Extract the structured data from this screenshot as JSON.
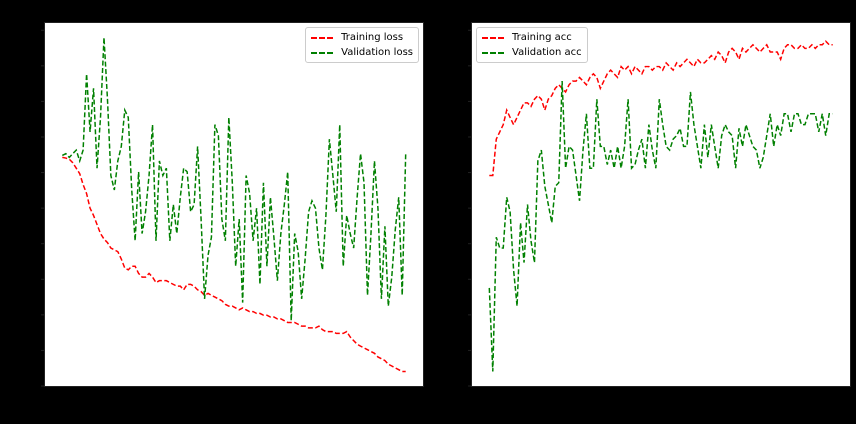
{
  "chart_data": [
    {
      "type": "line",
      "title": "",
      "xlabel": "",
      "ylabel": "",
      "note": "Tick labels are rendered black-on-black and not legible; y values are normalized to axis height (0 = bottom, 1 = top), x = epoch index 1..100.",
      "ylim": [
        0,
        1
      ],
      "xlim": [
        -4,
        105
      ],
      "grid": false,
      "legend_position": "upper right",
      "series": [
        {
          "name": "Training loss",
          "color": "#ff0000",
          "style": "dashed",
          "values": [
            0.63,
            0.628,
            0.625,
            0.615,
            0.6,
            0.585,
            0.555,
            0.53,
            0.49,
            0.47,
            0.445,
            0.42,
            0.405,
            0.395,
            0.38,
            0.375,
            0.37,
            0.35,
            0.325,
            0.32,
            0.33,
            0.33,
            0.31,
            0.3,
            0.3,
            0.31,
            0.3,
            0.285,
            0.29,
            0.29,
            0.29,
            0.285,
            0.28,
            0.275,
            0.275,
            0.265,
            0.28,
            0.28,
            0.275,
            0.265,
            0.26,
            0.25,
            0.255,
            0.25,
            0.245,
            0.24,
            0.235,
            0.225,
            0.22,
            0.22,
            0.215,
            0.21,
            0.215,
            0.21,
            0.205,
            0.205,
            0.2,
            0.2,
            0.195,
            0.195,
            0.19,
            0.19,
            0.185,
            0.185,
            0.18,
            0.175,
            0.175,
            0.175,
            0.17,
            0.165,
            0.165,
            0.16,
            0.16,
            0.16,
            0.165,
            0.155,
            0.15,
            0.15,
            0.15,
            0.145,
            0.145,
            0.145,
            0.15,
            0.135,
            0.125,
            0.115,
            0.11,
            0.105,
            0.1,
            0.095,
            0.09,
            0.08,
            0.075,
            0.07,
            0.06,
            0.055,
            0.05,
            0.045,
            0.04,
            0.04
          ]
        },
        {
          "name": "Validation loss",
          "color": "#008000",
          "style": "dashed",
          "values": [
            0.635,
            0.64,
            0.63,
            0.64,
            0.65,
            0.62,
            0.65,
            0.86,
            0.7,
            0.82,
            0.6,
            0.74,
            0.96,
            0.79,
            0.58,
            0.54,
            0.62,
            0.66,
            0.76,
            0.74,
            0.54,
            0.4,
            0.59,
            0.42,
            0.48,
            0.58,
            0.72,
            0.4,
            0.62,
            0.58,
            0.6,
            0.4,
            0.5,
            0.42,
            0.52,
            0.6,
            0.59,
            0.48,
            0.5,
            0.66,
            0.46,
            0.24,
            0.36,
            0.41,
            0.72,
            0.69,
            0.46,
            0.4,
            0.74,
            0.56,
            0.33,
            0.46,
            0.23,
            0.58,
            0.53,
            0.4,
            0.49,
            0.28,
            0.56,
            0.33,
            0.52,
            0.41,
            0.29,
            0.42,
            0.5,
            0.59,
            0.18,
            0.42,
            0.37,
            0.24,
            0.35,
            0.48,
            0.51,
            0.49,
            0.38,
            0.32,
            0.47,
            0.68,
            0.58,
            0.48,
            0.72,
            0.33,
            0.47,
            0.42,
            0.38,
            0.52,
            0.64,
            0.56,
            0.25,
            0.42,
            0.62,
            0.49,
            0.24,
            0.44,
            0.22,
            0.3,
            0.43,
            0.52,
            0.25,
            0.64
          ]
        }
      ]
    },
    {
      "type": "line",
      "title": "",
      "xlabel": "",
      "ylabel": "",
      "note": "Tick labels are rendered black-on-black and not legible; y values are normalized to axis height (0 = bottom, 1 = top), x = epoch index 1..100.",
      "ylim": [
        0,
        1
      ],
      "xlim": [
        -4,
        105
      ],
      "grid": false,
      "legend_position": "upper left",
      "series": [
        {
          "name": "Training acc",
          "color": "#ff0000",
          "style": "dashed",
          "values": [
            0.58,
            0.58,
            0.68,
            0.7,
            0.72,
            0.76,
            0.74,
            0.72,
            0.74,
            0.76,
            0.78,
            0.78,
            0.77,
            0.79,
            0.8,
            0.79,
            0.76,
            0.79,
            0.8,
            0.82,
            0.83,
            0.82,
            0.81,
            0.83,
            0.84,
            0.84,
            0.85,
            0.84,
            0.83,
            0.85,
            0.86,
            0.85,
            0.82,
            0.84,
            0.86,
            0.87,
            0.86,
            0.85,
            0.88,
            0.87,
            0.88,
            0.86,
            0.88,
            0.87,
            0.86,
            0.88,
            0.88,
            0.87,
            0.88,
            0.88,
            0.87,
            0.89,
            0.88,
            0.87,
            0.89,
            0.88,
            0.89,
            0.9,
            0.89,
            0.88,
            0.9,
            0.89,
            0.89,
            0.9,
            0.91,
            0.9,
            0.92,
            0.91,
            0.89,
            0.92,
            0.93,
            0.92,
            0.9,
            0.93,
            0.92,
            0.93,
            0.94,
            0.93,
            0.92,
            0.93,
            0.94,
            0.92,
            0.92,
            0.92,
            0.9,
            0.93,
            0.94,
            0.94,
            0.93,
            0.93,
            0.94,
            0.93,
            0.93,
            0.94,
            0.93,
            0.94,
            0.94,
            0.95,
            0.94,
            0.94
          ]
        },
        {
          "name": "Validation acc",
          "color": "#008000",
          "style": "dashed",
          "values": [
            0.27,
            0.04,
            0.41,
            0.38,
            0.38,
            0.52,
            0.48,
            0.32,
            0.22,
            0.45,
            0.34,
            0.5,
            0.4,
            0.34,
            0.62,
            0.65,
            0.55,
            0.5,
            0.45,
            0.55,
            0.56,
            0.84,
            0.6,
            0.66,
            0.65,
            0.58,
            0.51,
            0.65,
            0.75,
            0.6,
            0.6,
            0.79,
            0.66,
            0.66,
            0.61,
            0.65,
            0.6,
            0.66,
            0.6,
            0.66,
            0.79,
            0.6,
            0.61,
            0.65,
            0.68,
            0.6,
            0.72,
            0.65,
            0.6,
            0.79,
            0.72,
            0.66,
            0.65,
            0.68,
            0.69,
            0.71,
            0.66,
            0.66,
            0.81,
            0.72,
            0.66,
            0.6,
            0.72,
            0.63,
            0.72,
            0.66,
            0.6,
            0.69,
            0.72,
            0.7,
            0.69,
            0.6,
            0.71,
            0.66,
            0.72,
            0.69,
            0.66,
            0.65,
            0.6,
            0.63,
            0.69,
            0.75,
            0.66,
            0.72,
            0.69,
            0.75,
            0.75,
            0.7,
            0.75,
            0.75,
            0.72,
            0.72,
            0.75,
            0.75,
            0.75,
            0.7,
            0.75,
            0.69,
            0.75,
            0.75
          ]
        }
      ]
    }
  ]
}
